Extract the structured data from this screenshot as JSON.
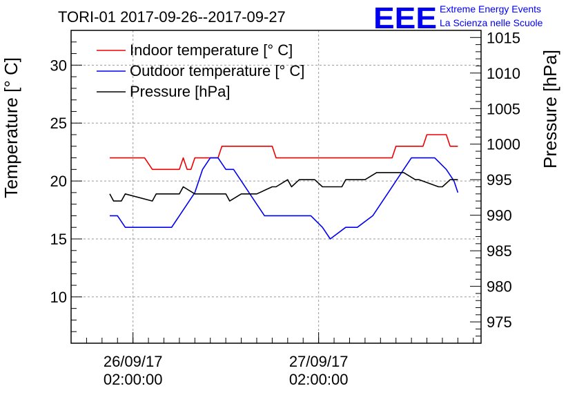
{
  "chart_data": {
    "type": "line",
    "title": "TORI-01 2017-09-26--2017-09-27",
    "ylabel": "Temperature [° C]",
    "y2label": "Pressure [hPa]",
    "xlabel": "",
    "ylim": [
      6.0,
      33.0
    ],
    "y2lim": [
      972.0,
      1016.0
    ],
    "y_ticks": [
      10,
      15,
      20,
      25,
      30
    ],
    "y2_ticks": [
      975,
      980,
      985,
      990,
      995,
      1000,
      1005,
      1010,
      1015
    ],
    "x_ticks": [
      {
        "x": "2017-09-26 02:00:00",
        "line1": "26/09/17",
        "line2": "02:00:00"
      },
      {
        "x": "2017-09-27 02:00:00",
        "line1": "27/09/17",
        "line2": "02:00:00"
      }
    ],
    "xlim": [
      "2017-09-25 18:00:00",
      "2017-09-27 23:00:00"
    ],
    "grid": true,
    "legend_position": "top-left",
    "series": [
      {
        "name": "Indoor temperature [° C]",
        "axis": "left",
        "color": "#ee0000",
        "x": [
          "2017-09-25 23:00:00",
          "2017-09-26 03:30:00",
          "2017-09-26 04:30:00",
          "2017-09-26 08:00:00",
          "2017-09-26 08:30:00",
          "2017-09-26 09:00:00",
          "2017-09-26 09:30:00",
          "2017-09-26 10:00:00",
          "2017-09-26 10:30:00",
          "2017-09-26 13:00:00",
          "2017-09-26 13:30:00",
          "2017-09-26 20:00:00",
          "2017-09-26 20:30:00",
          "2017-09-27 11:30:00",
          "2017-09-27 12:00:00",
          "2017-09-27 15:30:00",
          "2017-09-27 16:00:00",
          "2017-09-27 18:30:00",
          "2017-09-27 19:00:00",
          "2017-09-27 20:00:00"
        ],
        "values": [
          22,
          22,
          21,
          21,
          22,
          21,
          21,
          22,
          22,
          22,
          23,
          23,
          22,
          22,
          23,
          23,
          24,
          24,
          23,
          23
        ]
      },
      {
        "name": "Outdoor temperature [° C]",
        "axis": "left",
        "color": "#0000ee",
        "x": [
          "2017-09-25 23:00:00",
          "2017-09-26 00:00:00",
          "2017-09-26 01:00:00",
          "2017-09-26 07:00:00",
          "2017-09-26 08:00:00",
          "2017-09-26 09:00:00",
          "2017-09-26 10:00:00",
          "2017-09-26 11:00:00",
          "2017-09-26 12:00:00",
          "2017-09-26 13:00:00",
          "2017-09-26 14:00:00",
          "2017-09-26 15:00:00",
          "2017-09-26 16:00:00",
          "2017-09-26 17:00:00",
          "2017-09-26 18:00:00",
          "2017-09-26 19:00:00",
          "2017-09-27 01:00:00",
          "2017-09-27 02:30:00",
          "2017-09-27 03:30:00",
          "2017-09-27 05:30:00",
          "2017-09-27 07:00:00",
          "2017-09-27 09:00:00",
          "2017-09-27 11:00:00",
          "2017-09-27 13:00:00",
          "2017-09-27 14:00:00",
          "2017-09-27 17:00:00",
          "2017-09-27 18:30:00",
          "2017-09-27 19:30:00",
          "2017-09-27 20:00:00"
        ],
        "values": [
          17,
          17,
          16,
          16,
          17,
          18,
          19,
          21,
          22,
          22,
          21,
          21,
          20,
          19,
          18,
          17,
          17,
          16,
          15,
          16,
          16,
          17,
          19,
          21,
          22,
          22,
          21,
          20,
          19
        ]
      },
      {
        "name": "Pressure [hPa]",
        "axis": "right",
        "color": "#000000",
        "x": [
          "2017-09-25 23:00:00",
          "2017-09-25 23:30:00",
          "2017-09-26 00:30:00",
          "2017-09-26 01:00:00",
          "2017-09-26 04:30:00",
          "2017-09-26 05:00:00",
          "2017-09-26 08:00:00",
          "2017-09-26 08:30:00",
          "2017-09-26 10:00:00",
          "2017-09-26 11:00:00",
          "2017-09-26 14:00:00",
          "2017-09-26 14:30:00",
          "2017-09-26 16:00:00",
          "2017-09-26 16:30:00",
          "2017-09-26 18:00:00",
          "2017-09-26 20:00:00",
          "2017-09-26 20:30:00",
          "2017-09-26 22:00:00",
          "2017-09-26 22:30:00",
          "2017-09-26 23:30:00",
          "2017-09-27 00:00:00",
          "2017-09-27 01:30:00",
          "2017-09-27 02:30:00",
          "2017-09-27 05:00:00",
          "2017-09-27 05:30:00",
          "2017-09-27 07:30:00",
          "2017-09-27 08:00:00",
          "2017-09-27 09:30:00",
          "2017-09-27 12:00:00",
          "2017-09-27 13:00:00",
          "2017-09-27 14:30:00",
          "2017-09-27 15:00:00",
          "2017-09-27 17:30:00",
          "2017-09-27 18:00:00",
          "2017-09-27 19:00:00",
          "2017-09-27 20:00:00"
        ],
        "values": [
          993,
          992,
          992,
          993,
          992,
          993,
          993,
          994,
          993,
          993,
          993,
          992,
          993,
          993,
          993,
          994,
          994,
          995,
          994,
          995,
          995,
          995,
          994,
          994,
          995,
          995,
          995,
          996,
          996,
          996,
          995,
          995,
          994,
          994,
          995,
          995
        ]
      }
    ]
  },
  "logo": {
    "letters": "EEE",
    "line1": "Extreme Energy Events",
    "line2": "La Scienza nelle Scuole",
    "color": "#0000ee"
  }
}
